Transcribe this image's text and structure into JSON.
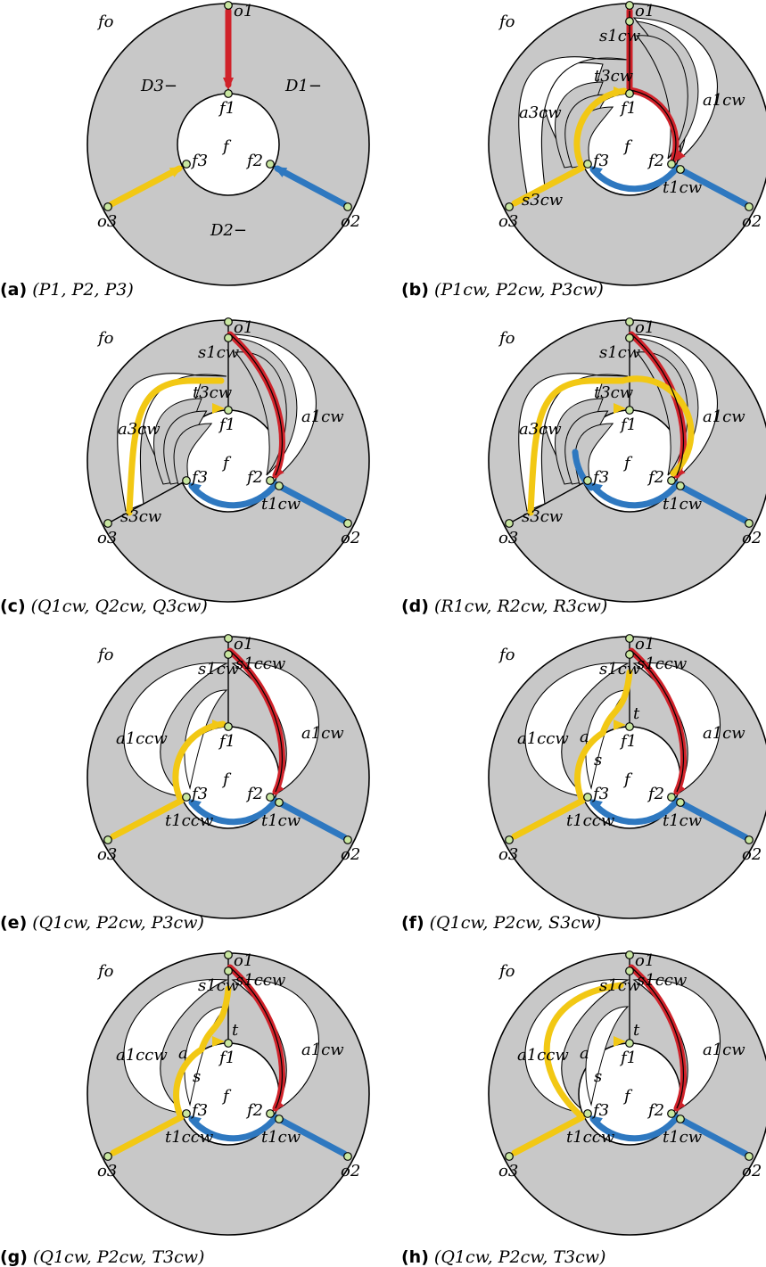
{
  "colors": {
    "gray": "#c8c8c8",
    "red": "#d0222a",
    "yellow": "#f2c814",
    "blue": "#2e78c0",
    "vertex": "#c8e6a0"
  },
  "panels": [
    {
      "caption_tag": "(a)",
      "caption_math": "(P1, P2, P3)",
      "labels": {
        "fo": "fo",
        "o1": "o1",
        "o2": "o2",
        "o3": "o3",
        "f1": "f1",
        "f2": "f2",
        "f3": "f3",
        "f": "f",
        "d1": "D1−",
        "d2": "D2−",
        "d3": "D3−"
      }
    },
    {
      "caption_tag": "(b)",
      "caption_math": "(P1cw, P2cw, P3cw)",
      "labels": {
        "fo": "fo",
        "o1": "o1",
        "o2": "o2",
        "o3": "o3",
        "f1": "f1",
        "f2": "f2",
        "f3": "f3",
        "f": "f",
        "s1": "s1cw",
        "t1": "t1cw",
        "s3": "s3cw",
        "t3": "t3cw",
        "a1": "a1cw",
        "a3": "a3cw"
      }
    },
    {
      "caption_tag": "(c)",
      "caption_math": "(Q1cw, Q2cw, Q3cw)",
      "labels": {
        "fo": "fo",
        "o1": "o1",
        "o2": "o2",
        "o3": "o3",
        "f1": "f1",
        "f2": "f2",
        "f3": "f3",
        "f": "f",
        "s1": "s1cw",
        "t1": "t1cw",
        "s3": "s3cw",
        "t3": "t3cw",
        "a1": "a1cw",
        "a3": "a3cw"
      }
    },
    {
      "caption_tag": "(d)",
      "caption_math": "(R1cw, R2cw, R3cw)",
      "labels": {
        "fo": "fo",
        "o1": "o1",
        "o2": "o2",
        "o3": "o3",
        "f1": "f1",
        "f2": "f2",
        "f3": "f3",
        "f": "f",
        "s1": "s1cw",
        "t1": "t1cw",
        "s3": "s3cw",
        "t3": "t3cw",
        "a1": "a1cw",
        "a3": "a3cw"
      }
    },
    {
      "caption_tag": "(e)",
      "caption_math": "(Q1cw, P2cw, P3cw)",
      "labels": {
        "fo": "fo",
        "o1": "o1",
        "o2": "o2",
        "o3": "o3",
        "f1": "f1",
        "f2": "f2",
        "f3": "f3",
        "f": "f",
        "s1": "s1cw",
        "s1ccw": "s1ccw",
        "t1": "t1cw",
        "t1ccw": "t1ccw",
        "a1": "a1cw",
        "a1ccw": "a1ccw"
      }
    },
    {
      "caption_tag": "(f)",
      "caption_math": "(Q1cw, P2cw, S3cw)",
      "labels": {
        "fo": "fo",
        "o1": "o1",
        "o2": "o2",
        "o3": "o3",
        "f1": "f1",
        "f2": "f2",
        "f3": "f3",
        "f": "f",
        "s1": "s1cw",
        "s1ccw": "s1ccw",
        "t1": "t1cw",
        "t1ccw": "t1ccw",
        "a1": "a1cw",
        "a1ccw": "a1ccw",
        "s": "s",
        "t": "t",
        "a": "a"
      }
    },
    {
      "caption_tag": "(g)",
      "caption_math": "(Q1cw, P2cw, T3cw)",
      "labels": {
        "fo": "fo",
        "o1": "o1",
        "o2": "o2",
        "o3": "o3",
        "f1": "f1",
        "f2": "f2",
        "f3": "f3",
        "f": "f",
        "s1": "s1cw",
        "s1ccw": "s1ccw",
        "t1": "t1cw",
        "t1ccw": "t1ccw",
        "a1": "a1cw",
        "a1ccw": "a1ccw",
        "s": "s",
        "t": "t",
        "a": "a"
      }
    },
    {
      "caption_tag": "(h)",
      "caption_math": "(Q1cw, P2cw, T3cw)",
      "labels": {
        "fo": "fo",
        "o1": "o1",
        "o2": "o2",
        "o3": "o3",
        "f1": "f1",
        "f2": "f2",
        "f3": "f3",
        "f": "f",
        "s1": "s1cw",
        "s1ccw": "s1ccw",
        "t1": "t1cw",
        "t1ccw": "t1ccw",
        "a1": "a1cw",
        "a1ccw": "a1ccw",
        "s": "s",
        "t": "t",
        "a": "a"
      }
    }
  ]
}
